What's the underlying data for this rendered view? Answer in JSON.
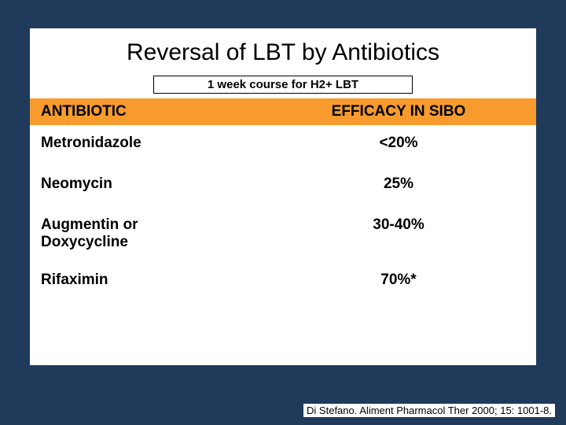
{
  "slide": {
    "background_color": "#1f3a5a",
    "panel_color": "#ffffff",
    "title": "Reversal of LBT by Antibiotics",
    "title_fontsize": 30,
    "title_color": "#000000",
    "subtitle": "1 week course for H2+ LBT",
    "subtitle_fontsize": 15,
    "subtitle_border": "#000000"
  },
  "table": {
    "type": "table",
    "header_bg": "#f79b2e",
    "header_fontsize": 19,
    "row_fontsize": 19,
    "text_color": "#000000",
    "columns": [
      "ANTIBIOTIC",
      "EFFICACY IN SIBO"
    ],
    "rows": [
      {
        "antibiotic": "Metronidazole",
        "efficacy": "<20%"
      },
      {
        "antibiotic": "Neomycin",
        "efficacy": "25%"
      },
      {
        "antibiotic": "Augmentin or Doxycycline",
        "efficacy": "30-40%"
      },
      {
        "antibiotic": "Rifaximin",
        "efficacy": "70%*"
      }
    ]
  },
  "citation": {
    "text": "Di Stefano. Aliment Pharmacol Ther 2000; 15: 1001-8.",
    "fontsize": 13,
    "color": "#000000",
    "bg": "#ffffff"
  }
}
